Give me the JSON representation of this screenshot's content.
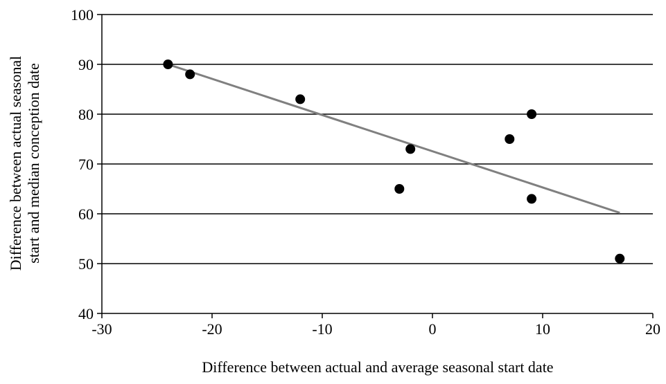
{
  "chart_data": {
    "type": "scatter",
    "title": "",
    "xlabel": "Difference between actual and average seasonal start date",
    "ylabel_lines": [
      "Difference between actual seasonal",
      "start and median conception date"
    ],
    "xlim": [
      -30,
      20
    ],
    "ylim": [
      40,
      100
    ],
    "x_ticks": [
      -30,
      -20,
      -10,
      0,
      10,
      20
    ],
    "y_ticks": [
      40,
      50,
      60,
      70,
      80,
      90,
      100
    ],
    "grid": "horizontal",
    "legend": "none",
    "points": [
      {
        "x": -24,
        "y": 90
      },
      {
        "x": -22,
        "y": 88
      },
      {
        "x": -12,
        "y": 83
      },
      {
        "x": -3,
        "y": 65
      },
      {
        "x": -2,
        "y": 73
      },
      {
        "x": 7,
        "y": 75
      },
      {
        "x": 9,
        "y": 80
      },
      {
        "x": 9,
        "y": 63
      },
      {
        "x": 17,
        "y": 51
      }
    ],
    "trendline": {
      "type": "linear",
      "from": {
        "x": -24,
        "y": 90
      },
      "to": {
        "x": 17,
        "y": 60.2
      }
    },
    "colors": {
      "points": "#000000",
      "trendline": "#808080",
      "grid": "#000000",
      "axes": "#000000"
    }
  }
}
